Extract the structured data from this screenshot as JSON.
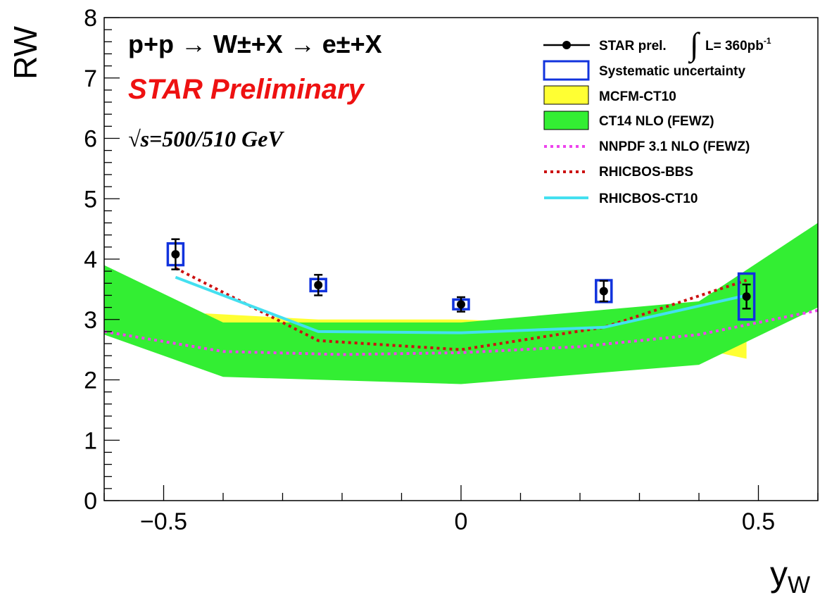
{
  "chart_data": {
    "type": "line",
    "title": "",
    "xlabel": "y",
    "xlabel_sub": "W",
    "ylabel": "RW",
    "xlim": [
      -0.6,
      0.6
    ],
    "ylim": [
      0,
      8
    ],
    "x_tick_labels": [
      "−0.5",
      "0",
      "0.5"
    ],
    "x_tick_values": [
      -0.5,
      0,
      0.5
    ],
    "y_tick_labels": [
      "0",
      "1",
      "2",
      "3",
      "4",
      "5",
      "6",
      "7",
      "8"
    ],
    "y_tick_values": [
      0,
      1,
      2,
      3,
      4,
      5,
      6,
      7,
      8
    ],
    "annotations": {
      "process": "p+p → W±+X → e±+X",
      "preliminary": "STAR Preliminary",
      "energy": "√s=500/510 GeV"
    },
    "data_points": {
      "name": "STAR prel.",
      "x": [
        -0.48,
        -0.24,
        0.0,
        0.24,
        0.48
      ],
      "y": [
        4.08,
        3.57,
        3.25,
        3.47,
        3.38
      ],
      "stat_err": [
        0.25,
        0.17,
        0.12,
        0.17,
        0.2
      ],
      "sys_err": [
        0.18,
        0.1,
        0.08,
        0.18,
        0.38
      ]
    },
    "series": [
      {
        "name": "MCFM-CT10",
        "kind": "band",
        "color": "#ffff33",
        "x": [
          -0.43,
          -0.24,
          0.0,
          0.24,
          0.48
        ],
        "low": [
          2.9,
          2.9,
          2.9,
          2.85,
          2.35
        ],
        "high": [
          3.1,
          3.0,
          3.0,
          2.9,
          2.75
        ]
      },
      {
        "name": "CT14 NLO (FEWZ)",
        "kind": "band",
        "color": "#33ee33",
        "x": [
          -0.6,
          -0.4,
          0.0,
          0.4,
          0.6
        ],
        "low": [
          2.75,
          2.05,
          1.93,
          2.25,
          3.2
        ],
        "high": [
          3.9,
          2.95,
          2.95,
          3.3,
          4.6
        ]
      },
      {
        "name": "NNPDF 3.1 NLO (FEWZ)",
        "kind": "dotted",
        "color": "#ee44ee",
        "x": [
          -0.6,
          -0.4,
          -0.2,
          0.0,
          0.2,
          0.4,
          0.6
        ],
        "values": [
          2.8,
          2.47,
          2.42,
          2.45,
          2.55,
          2.75,
          3.15
        ]
      },
      {
        "name": "RHICBOS-BBS",
        "kind": "dotted",
        "color": "#cc1111",
        "x": [
          -0.48,
          -0.24,
          0.0,
          0.24,
          0.48
        ],
        "values": [
          3.85,
          2.65,
          2.5,
          2.87,
          3.65
        ]
      },
      {
        "name": "RHICBOS-CT10",
        "kind": "line",
        "color": "#44e0f0",
        "x": [
          -0.48,
          -0.24,
          0.0,
          0.24,
          0.48
        ],
        "values": [
          3.7,
          2.8,
          2.78,
          2.87,
          3.4
        ]
      }
    ],
    "legend": {
      "position": "top-right",
      "entries": [
        {
          "label": "STAR prel.",
          "lumi_prefix": "L= 360pb",
          "lumi_sup": "-1"
        },
        {
          "label": "Systematic uncertainty"
        },
        {
          "label": "MCFM-CT10"
        },
        {
          "label": "CT14 NLO (FEWZ)"
        },
        {
          "label": "NNPDF 3.1 NLO (FEWZ)"
        },
        {
          "label": "RHICBOS-BBS"
        },
        {
          "label": "RHICBOS-CT10"
        }
      ]
    },
    "colors": {
      "preliminary_text": "#ee1111",
      "sys_box": "#1133dd",
      "marker": "#000000"
    }
  }
}
